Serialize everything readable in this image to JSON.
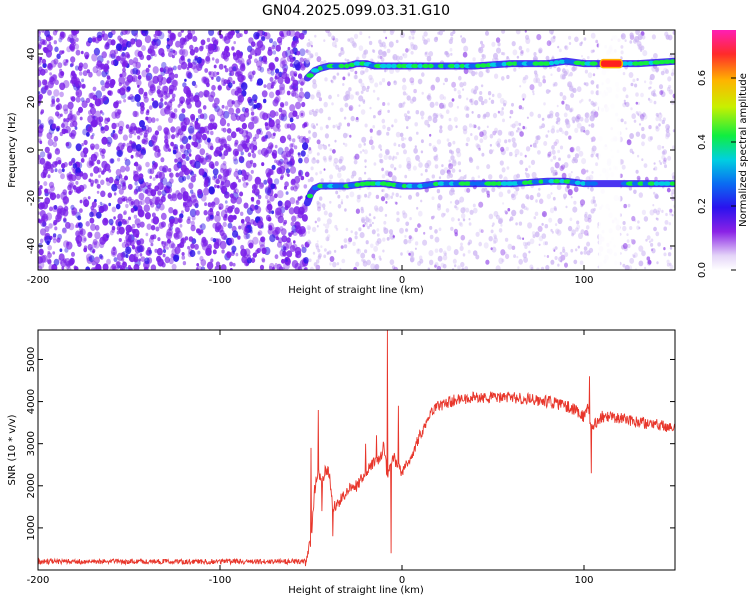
{
  "title": "GN04.2025.099.03.31.G10",
  "chart_data": [
    {
      "type": "heatmap",
      "xlabel": "Height of straight line (km)",
      "ylabel": "Frequency (Hz)",
      "xlim": [
        -200,
        150
      ],
      "ylim": [
        -50,
        50
      ],
      "x_ticks": [
        -200,
        -100,
        0,
        100
      ],
      "y_ticks": [
        -40,
        -20,
        0,
        20,
        40
      ],
      "colorbar": {
        "label": "Normalized spectral amplitude",
        "range": [
          0.0,
          0.75
        ],
        "ticks": [
          "0.0",
          "0.2",
          "0.4",
          "0.6"
        ]
      },
      "noise_regions": [
        {
          "x_from": -200,
          "x_to": -52,
          "density": "high",
          "color": "#7a1fe8"
        },
        {
          "x_from": -52,
          "x_to": 150,
          "density": "low",
          "color": "#c9b0f2"
        }
      ],
      "gap_regions": [
        {
          "x_from": 108,
          "x_to": 120
        }
      ],
      "tracks": [
        {
          "x": [
            -52,
            -48,
            -45,
            -40,
            -30,
            -25,
            -20,
            -15,
            -10,
            0,
            10,
            20,
            40,
            60,
            80,
            90,
            100,
            110,
            120,
            130,
            150
          ],
          "y": [
            30,
            33,
            34,
            35,
            35,
            36,
            36,
            35,
            35,
            35,
            35,
            35,
            35,
            36,
            36,
            37,
            36,
            36,
            36,
            36,
            37
          ]
        },
        {
          "x": [
            -52,
            -50,
            -48,
            -45,
            -40,
            -30,
            -20,
            -15,
            -10,
            0,
            10,
            20,
            40,
            60,
            80,
            90,
            100,
            108,
            120,
            130,
            150
          ],
          "y": [
            -22,
            -18,
            -16,
            -15,
            -15,
            -15,
            -14,
            -14,
            -14,
            -15,
            -15,
            -14,
            -14,
            -14,
            -13,
            -13,
            -14,
            -14,
            -14,
            -14,
            -14
          ]
        }
      ],
      "peak": {
        "x": 115,
        "y": 36,
        "amplitude": 0.72
      }
    },
    {
      "type": "line",
      "xlabel": "Height of straight line (km)",
      "ylabel": "SNR (10 * v/v)",
      "xlim": [
        -200,
        150
      ],
      "ylim": [
        0,
        5700
      ],
      "x_ticks": [
        -200,
        -100,
        0,
        100
      ],
      "y_ticks": [
        1000,
        2000,
        3000,
        4000,
        5000
      ],
      "color": "#e8362b",
      "envelope": {
        "x": [
          -200,
          -160,
          -120,
          -80,
          -53,
          -50,
          -48,
          -46,
          -44,
          -42,
          -40,
          -38,
          -35,
          -30,
          -25,
          -20,
          -15,
          -12,
          -10,
          -8,
          -5,
          0,
          5,
          10,
          15,
          20,
          30,
          40,
          50,
          60,
          70,
          80,
          90,
          95,
          100,
          102,
          104,
          110,
          120,
          130,
          140,
          150
        ],
        "y": [
          200,
          200,
          200,
          200,
          200,
          700,
          1900,
          2400,
          2000,
          2400,
          2300,
          1500,
          1600,
          1900,
          2000,
          2300,
          2600,
          2600,
          3000,
          2200,
          2700,
          2300,
          2700,
          3200,
          3700,
          3900,
          4050,
          4100,
          4100,
          4100,
          4050,
          4000,
          3900,
          3800,
          3650,
          3900,
          3400,
          3650,
          3600,
          3500,
          3450,
          3350
        ]
      },
      "noise_amplitude": 140,
      "spikes": [
        {
          "x": -50,
          "y": 2900
        },
        {
          "x": -46,
          "y": 3800
        },
        {
          "x": -44,
          "y": 1400
        },
        {
          "x": -38,
          "y": 800
        },
        {
          "x": -20,
          "y": 3000
        },
        {
          "x": -14,
          "y": 3200
        },
        {
          "x": -8,
          "y": 5700
        },
        {
          "x": -6,
          "y": 400
        },
        {
          "x": -2,
          "y": 3900
        },
        {
          "x": 103,
          "y": 4600
        },
        {
          "x": 104,
          "y": 2300
        }
      ]
    }
  ]
}
